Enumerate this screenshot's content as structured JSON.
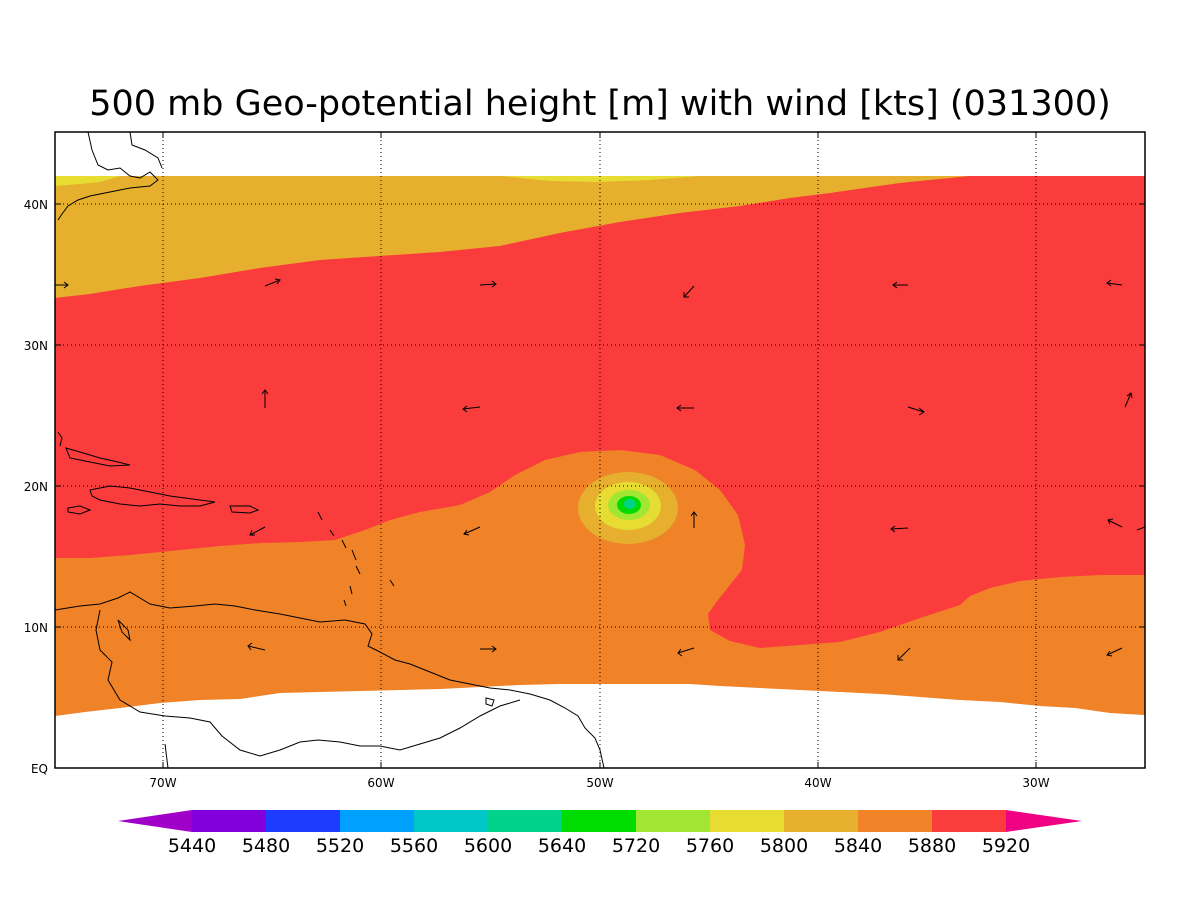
{
  "title": "500 mb Geo-potential height [m] with wind [kts] (031300)",
  "longitude_labels": [
    "70W",
    "60W",
    "50W",
    "40W",
    "30W"
  ],
  "latitude_labels": [
    "EQ",
    "10N",
    "20N",
    "30N",
    "40N"
  ],
  "colorbar": {
    "labels": [
      "5440",
      "5480",
      "5520",
      "5560",
      "5600",
      "5640",
      "5720",
      "5760",
      "5800",
      "5840",
      "5880",
      "5920"
    ],
    "colors": [
      "#a000c8",
      "#8200dc",
      "#1e3cff",
      "#00a0ff",
      "#00c8c8",
      "#00d28c",
      "#00dc00",
      "#a0e632",
      "#e6dc32",
      "#e6af2d",
      "#f08228",
      "#fa3c3c",
      "#f00082"
    ]
  },
  "fill_colors": {
    "c5880": "#f08228",
    "c5920": "#fa3c3c",
    "c5840": "#e6af2d",
    "c5800": "#e6dc32",
    "c5760": "#a0e632",
    "c5720": "#00dc00",
    "c5640": "#00d28c"
  }
}
